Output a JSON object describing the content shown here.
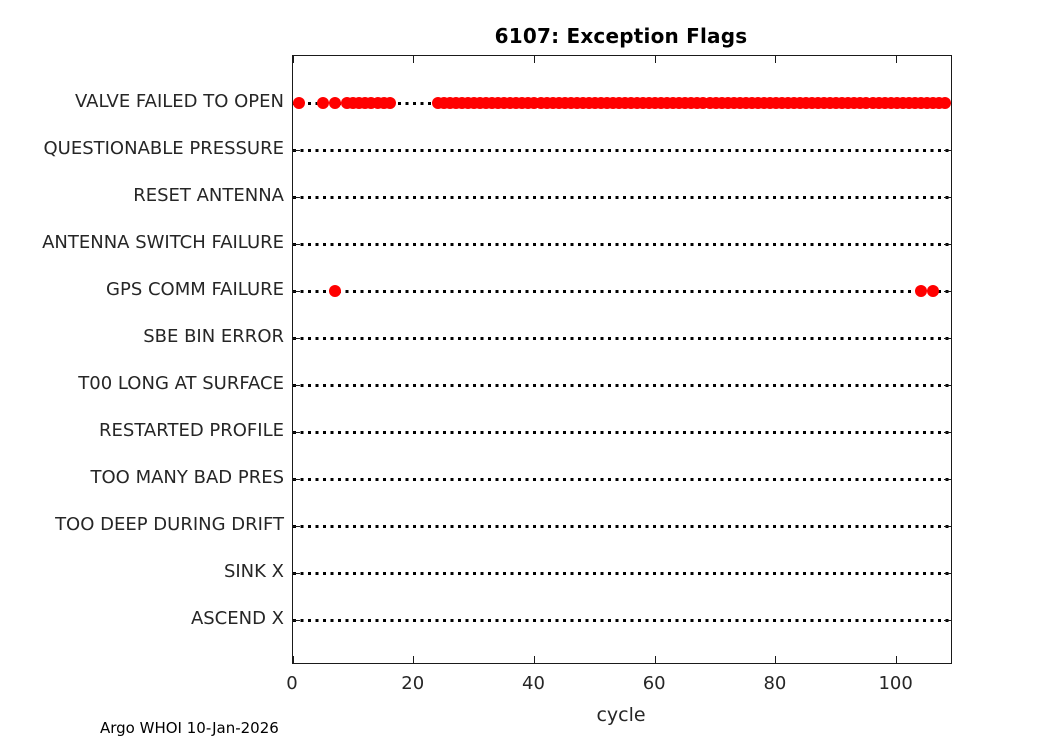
{
  "chart_data": {
    "type": "scatter",
    "title": "6107: Exception Flags",
    "xlabel": "cycle",
    "annotation": "Argo WHOI 10-Jan-2026",
    "xlim": [
      0,
      109
    ],
    "xticks": [
      0,
      20,
      40,
      60,
      80,
      100
    ],
    "grid": "horizontal dotted baseline per category",
    "legend": "none",
    "marker_color": "#ff0000",
    "axis_color": "#1a1a1a",
    "categories": [
      "VALVE FAILED TO OPEN",
      "QUESTIONABLE PRESSURE",
      "RESET ANTENNA",
      "ANTENNA SWITCH FAILURE",
      "GPS COMM FAILURE",
      "SBE BIN ERROR",
      "T00 LONG AT SURFACE",
      "RESTARTED PROFILE",
      "TOO MANY BAD PRES",
      "TOO DEEP DURING DRIFT",
      "SINK X",
      "ASCEND X"
    ],
    "rows": [
      {
        "label": "VALVE FAILED TO OPEN",
        "cycles": [
          1,
          5,
          7,
          9,
          10,
          11,
          12,
          13,
          14,
          15,
          16,
          24,
          25,
          26,
          27,
          28,
          29,
          30,
          31,
          32,
          33,
          34,
          35,
          36,
          37,
          38,
          39,
          40,
          41,
          42,
          43,
          44,
          45,
          46,
          47,
          48,
          49,
          50,
          51,
          52,
          53,
          54,
          55,
          56,
          57,
          58,
          59,
          60,
          61,
          62,
          63,
          64,
          65,
          66,
          67,
          68,
          69,
          70,
          71,
          72,
          73,
          74,
          75,
          76,
          77,
          78,
          79,
          80,
          81,
          82,
          83,
          84,
          85,
          86,
          87,
          88,
          89,
          90,
          91,
          92,
          93,
          94,
          95,
          96,
          97,
          98,
          99,
          100,
          101,
          102,
          103,
          104,
          105,
          106,
          107,
          108
        ]
      },
      {
        "label": "QUESTIONABLE PRESSURE",
        "cycles": []
      },
      {
        "label": "RESET ANTENNA",
        "cycles": []
      },
      {
        "label": "ANTENNA SWITCH FAILURE",
        "cycles": []
      },
      {
        "label": "GPS COMM FAILURE",
        "cycles": [
          7,
          104,
          106
        ]
      },
      {
        "label": "SBE BIN ERROR",
        "cycles": []
      },
      {
        "label": "T00 LONG AT SURFACE",
        "cycles": []
      },
      {
        "label": "RESTARTED PROFILE",
        "cycles": []
      },
      {
        "label": "TOO MANY BAD PRES",
        "cycles": []
      },
      {
        "label": "TOO DEEP DURING DRIFT",
        "cycles": []
      },
      {
        "label": "SINK X",
        "cycles": []
      },
      {
        "label": "ASCEND X",
        "cycles": []
      }
    ]
  }
}
